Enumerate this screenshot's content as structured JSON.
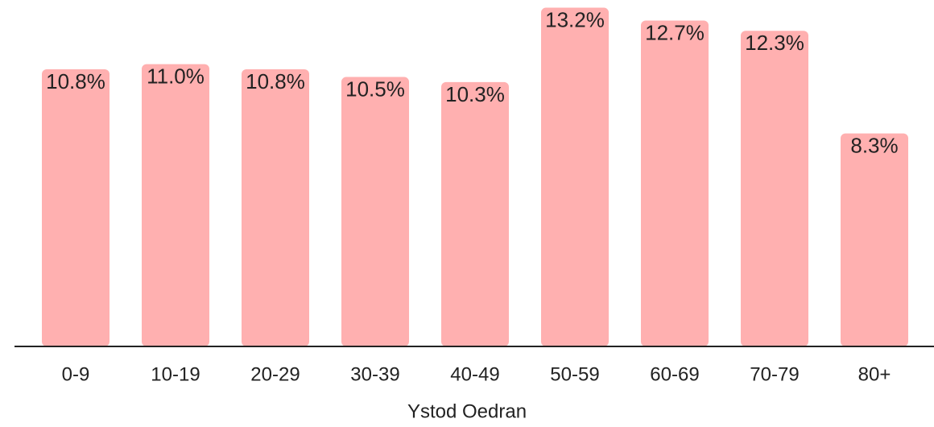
{
  "chart_data": {
    "type": "bar",
    "xlabel": "Ystod Oedran",
    "categories": [
      "0-9",
      "10-19",
      "20-29",
      "30-39",
      "40-49",
      "50-59",
      "60-69",
      "70-79",
      "80+"
    ],
    "values": [
      10.8,
      11.0,
      10.8,
      10.5,
      10.3,
      13.2,
      12.7,
      12.3,
      8.3
    ],
    "value_labels": [
      "10.8%",
      "11.0%",
      "10.8%",
      "10.5%",
      "10.3%",
      "13.2%",
      "12.7%",
      "12.3%",
      "8.3%"
    ],
    "color": "#ffb0b0",
    "ylim": [
      0,
      13.5
    ]
  }
}
